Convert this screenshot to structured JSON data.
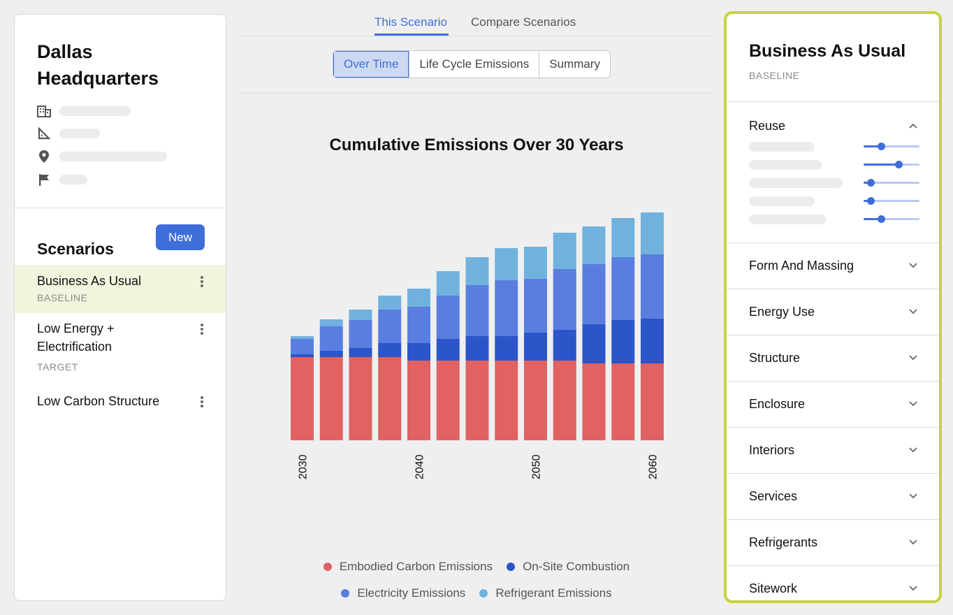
{
  "project": {
    "title": "Dallas Headquarters",
    "meta_icons": [
      "building-icon",
      "ruler-icon",
      "location-pin-icon",
      "flag-icon"
    ]
  },
  "scenarios": {
    "heading": "Scenarios",
    "new_label": "New",
    "items": [
      {
        "name": "Business As Usual",
        "tag": "BASELINE",
        "selected": true
      },
      {
        "name": "Low Energy + Electrification",
        "tag": "TARGET",
        "selected": false
      },
      {
        "name": "Low Carbon Structure",
        "tag": "",
        "selected": false
      }
    ]
  },
  "tabs": {
    "items": [
      "This Scenario",
      "Compare Scenarios"
    ],
    "active": "This Scenario"
  },
  "views": {
    "items": [
      "Over Time",
      "Life Cycle Emissions",
      "Summary"
    ],
    "active": "Over Time"
  },
  "chart_data": {
    "type": "bar",
    "stacked": true,
    "title": "Cumulative Emissions Over 30 Years",
    "x": [
      2030,
      2032.5,
      2035,
      2037.5,
      2040,
      2042.5,
      2045,
      2047.5,
      2050,
      2052.5,
      2055,
      2057.5,
      2060
    ],
    "tick_labels": [
      "2030",
      "2040",
      "2050",
      "2060"
    ],
    "colors": {
      "embodied": "#e06262",
      "onsite": "#2b55c9",
      "electricity": "#5a7de0",
      "refrigerant": "#70b2dd"
    },
    "series": [
      {
        "name": "Embodied Carbon Emissions",
        "key": "embodied",
        "values": [
          119,
          119,
          119,
          119,
          114,
          114,
          114,
          114,
          114,
          114,
          110,
          110,
          110
        ]
      },
      {
        "name": "On-Site Combustion",
        "key": "onsite",
        "values": [
          4,
          9,
          13,
          20,
          25,
          31,
          35,
          35,
          40,
          44,
          56,
          62,
          64
        ]
      },
      {
        "name": "Electricity Emissions",
        "key": "electricity",
        "values": [
          22,
          35,
          40,
          48,
          52,
          62,
          73,
          80,
          77,
          87,
          86,
          90,
          92
        ]
      },
      {
        "name": "Refrigerant Emissions",
        "key": "refrigerant",
        "values": [
          4,
          10,
          15,
          20,
          26,
          35,
          40,
          46,
          46,
          52,
          54,
          56,
          60
        ]
      }
    ]
  },
  "legend": {
    "row1": [
      "Embodied Carbon Emissions",
      "On-Site Combustion"
    ],
    "row2": [
      "Electricity Emissions",
      "Refrigerant Emissions"
    ]
  },
  "details": {
    "title": "Business As Usual",
    "tag": "BASELINE",
    "reuse": {
      "label": "Reuse",
      "sliders": [
        0.28,
        0.65,
        0.06,
        0.06,
        0.28
      ]
    },
    "sections": [
      "Form And Massing",
      "Energy Use",
      "Structure",
      "Enclosure",
      "Interiors",
      "Services",
      "Refrigerants",
      "Sitework"
    ]
  }
}
